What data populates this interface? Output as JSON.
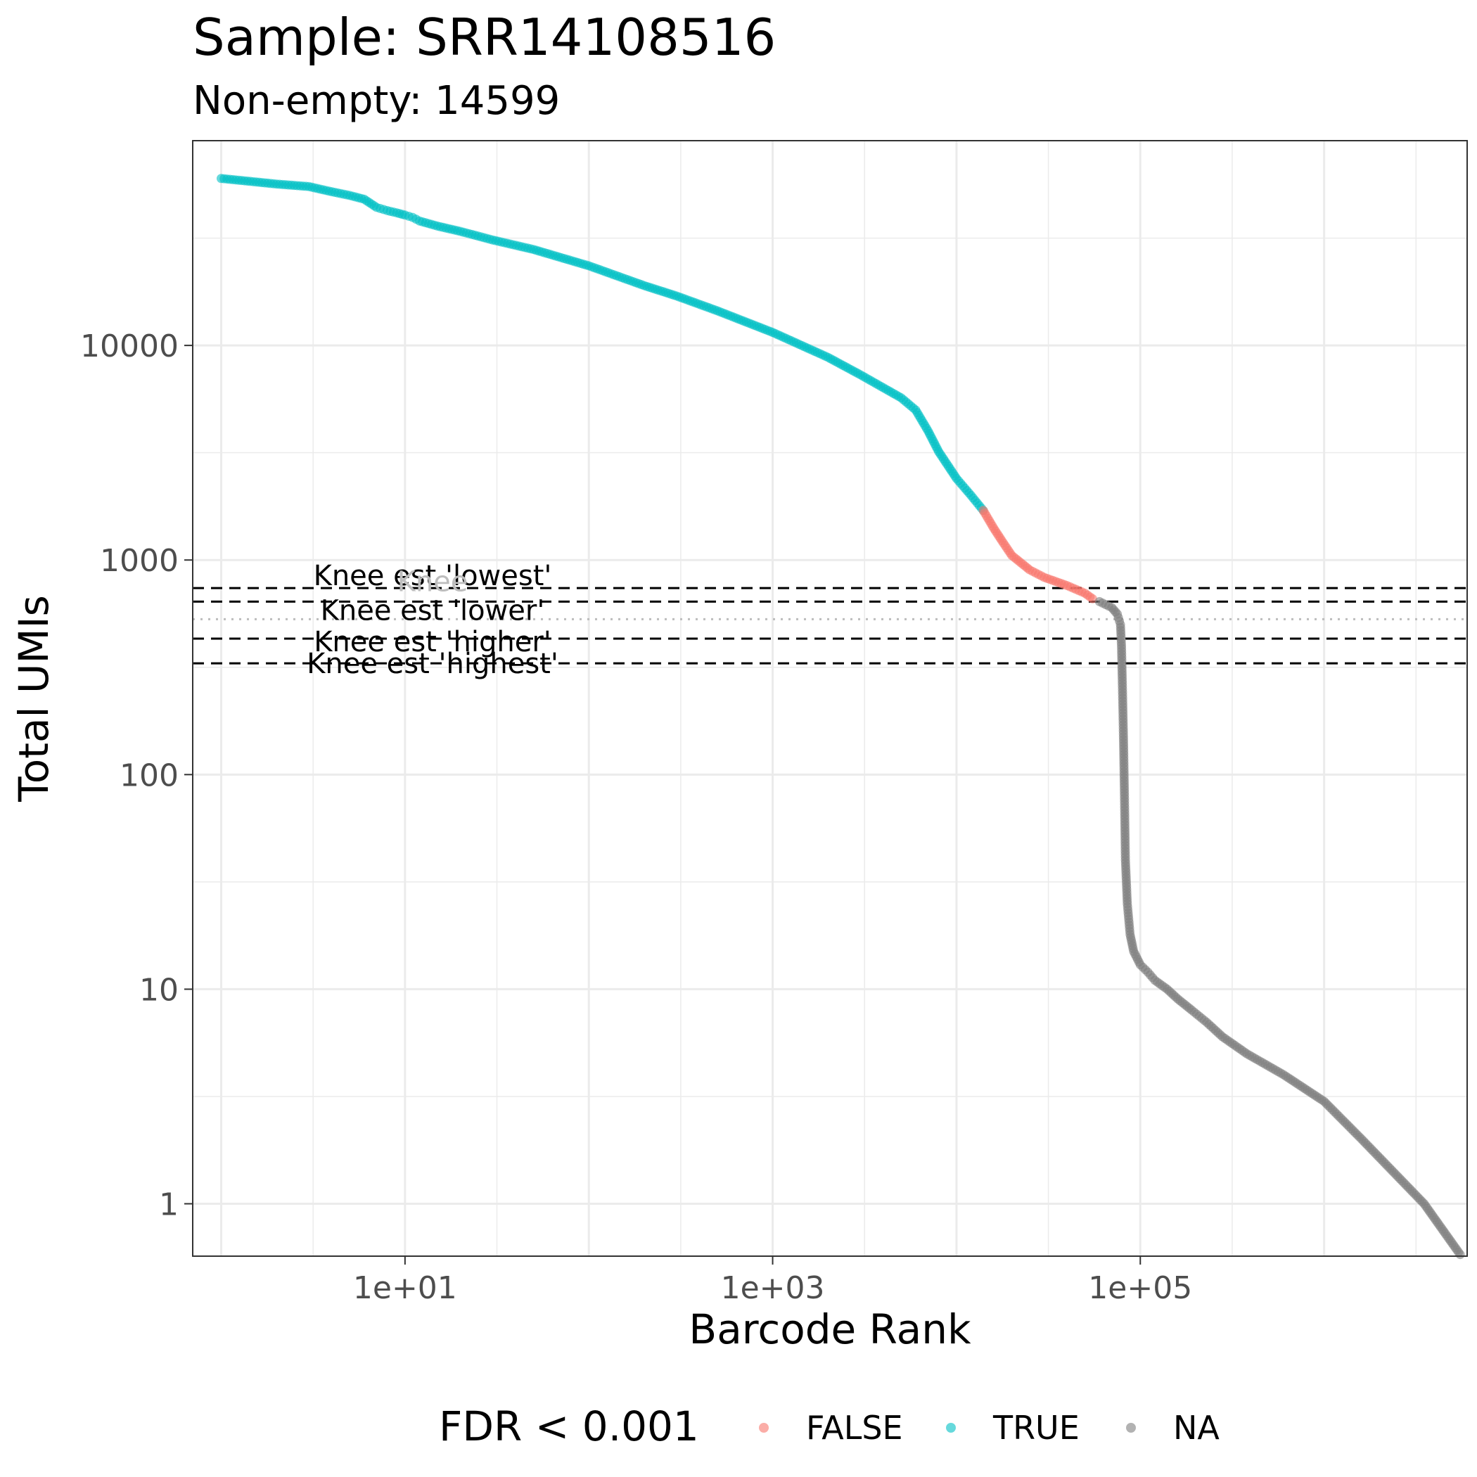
{
  "chart_data": {
    "type": "scatter",
    "title": "Sample: SRR14108516",
    "subtitle": "Non-empty: 14599",
    "xlabel": "Barcode Rank",
    "ylabel": "Total UMIs",
    "x_scale": "log10",
    "y_scale": "log10",
    "xlim": [
      0.7,
      6000000
    ],
    "ylim": [
      0.57,
      90000
    ],
    "x_ticks": [
      {
        "value": 10,
        "label": "1e+01"
      },
      {
        "value": 1000,
        "label": "1e+03"
      },
      {
        "value": 100000,
        "label": "1e+05"
      }
    ],
    "y_ticks": [
      {
        "value": 1,
        "label": "1"
      },
      {
        "value": 10,
        "label": "10"
      },
      {
        "value": 100,
        "label": "100"
      },
      {
        "value": 1000,
        "label": "1000"
      },
      {
        "value": 10000,
        "label": "10000"
      }
    ],
    "grid": true,
    "legend": {
      "title": "FDR < 0.001",
      "placement": "bottom",
      "entries": [
        {
          "label": "FALSE",
          "color": "#F8766D"
        },
        {
          "label": "TRUE",
          "color": "#00BFC4"
        },
        {
          "label": "NA",
          "color": "#7f7f7f"
        }
      ]
    },
    "series": [
      {
        "name": "TRUE",
        "color": "#00BFC4",
        "points": [
          [
            1,
            60000
          ],
          [
            2,
            56500
          ],
          [
            3,
            55000
          ],
          [
            4,
            52000
          ],
          [
            5,
            50000
          ],
          [
            6,
            48000
          ],
          [
            7,
            44000
          ],
          [
            8,
            42500
          ],
          [
            9,
            41500
          ],
          [
            10,
            40500
          ],
          [
            11,
            39500
          ],
          [
            12,
            38000
          ],
          [
            15,
            36000
          ],
          [
            20,
            34000
          ],
          [
            30,
            31000
          ],
          [
            50,
            28000
          ],
          [
            100,
            23500
          ],
          [
            200,
            19000
          ],
          [
            300,
            17000
          ],
          [
            500,
            14500
          ],
          [
            1000,
            11500
          ],
          [
            2000,
            8800
          ],
          [
            3000,
            7300
          ],
          [
            5000,
            5700
          ],
          [
            6000,
            5000
          ],
          [
            7000,
            4000
          ],
          [
            8000,
            3200
          ],
          [
            10000,
            2400
          ],
          [
            12000,
            2000
          ],
          [
            14000,
            1700
          ]
        ]
      },
      {
        "name": "FALSE",
        "color": "#F8766D",
        "points": [
          [
            14000,
            1700
          ],
          [
            16000,
            1400
          ],
          [
            18000,
            1200
          ],
          [
            20000,
            1050
          ],
          [
            25000,
            900
          ],
          [
            30000,
            830
          ],
          [
            40000,
            760
          ],
          [
            50000,
            700
          ],
          [
            55000,
            660
          ]
        ]
      },
      {
        "name": "NA",
        "color": "#7f7f7f",
        "points": [
          [
            60000,
            640
          ],
          [
            70000,
            600
          ],
          [
            75000,
            560
          ],
          [
            78000,
            500
          ],
          [
            79000,
            400
          ],
          [
            80000,
            250
          ],
          [
            81000,
            150
          ],
          [
            82000,
            80
          ],
          [
            83000,
            40
          ],
          [
            85000,
            25
          ],
          [
            88000,
            18
          ],
          [
            92000,
            15
          ],
          [
            100000,
            13
          ],
          [
            110000,
            12
          ],
          [
            120000,
            11
          ],
          [
            140000,
            10
          ],
          [
            160000,
            9
          ],
          [
            190000,
            8
          ],
          [
            230000,
            7
          ],
          [
            280000,
            6
          ],
          [
            380000,
            5
          ],
          [
            600000,
            4
          ],
          [
            1000000,
            3
          ],
          [
            1600000,
            2
          ],
          [
            3500000,
            1
          ],
          [
            5500000,
            0.58
          ]
        ]
      }
    ],
    "hlines": [
      {
        "y": 740,
        "style": "dashed",
        "label": "Knee est 'lowest'"
      },
      {
        "y": 640,
        "style": "dashed",
        "label": "Knee est 'lower'"
      },
      {
        "y": 530,
        "style": "dotted",
        "label": "Knee"
      },
      {
        "y": 430,
        "style": "dashed",
        "label": "Knee est 'higher'"
      },
      {
        "y": 330,
        "style": "dashed",
        "label": "Knee est 'highest'"
      }
    ]
  }
}
